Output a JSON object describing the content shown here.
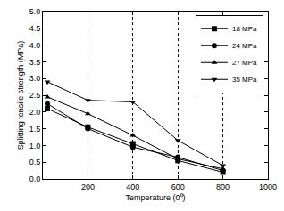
{
  "chart_data": {
    "type": "line",
    "x_label": "Temperature (0⁰)",
    "y_label": "Splitting tensile strength (MPa)",
    "x": [
      20,
      200,
      400,
      600,
      800
    ],
    "series": [
      {
        "name": "18 MPa",
        "color": "#000000",
        "marker": "square",
        "values": [
          2.1,
          1.55,
          1.05,
          0.55,
          0.2
        ]
      },
      {
        "name": "24 MPa",
        "color": "#000000",
        "marker": "circle",
        "values": [
          2.25,
          1.5,
          0.95,
          0.65,
          0.25
        ]
      },
      {
        "name": "27 MPa",
        "color": "#000000",
        "marker": "triangle-up",
        "values": [
          2.45,
          1.95,
          1.3,
          0.6,
          0.3
        ]
      },
      {
        "name": "35 MPa",
        "color": "#000000",
        "marker": "triangle-down",
        "values": [
          2.9,
          2.35,
          2.3,
          1.15,
          0.4
        ]
      }
    ],
    "xlim": [
      0,
      1000
    ],
    "xticks": [
      200,
      400,
      600,
      800,
      1000
    ],
    "ylim": [
      0,
      5
    ],
    "yticks": [
      {
        "value": 0,
        "label": "0.0"
      },
      {
        "value": 0.5,
        "label": "0.5"
      },
      {
        "value": 1,
        "label": "1.0"
      },
      {
        "value": 1.5,
        "label": "1.5"
      },
      {
        "value": 2,
        "label": "2.0"
      },
      {
        "value": 2.5,
        "label": "2.5"
      },
      {
        "value": 3,
        "label": "3.0"
      },
      {
        "value": 3.5,
        "label": "3.5"
      },
      {
        "value": 4,
        "label": "4.0"
      },
      {
        "value": 4.5,
        "label": "4.5"
      },
      {
        "value": 5,
        "label": "5.0"
      }
    ],
    "grid": true,
    "legend": "top-right"
  }
}
